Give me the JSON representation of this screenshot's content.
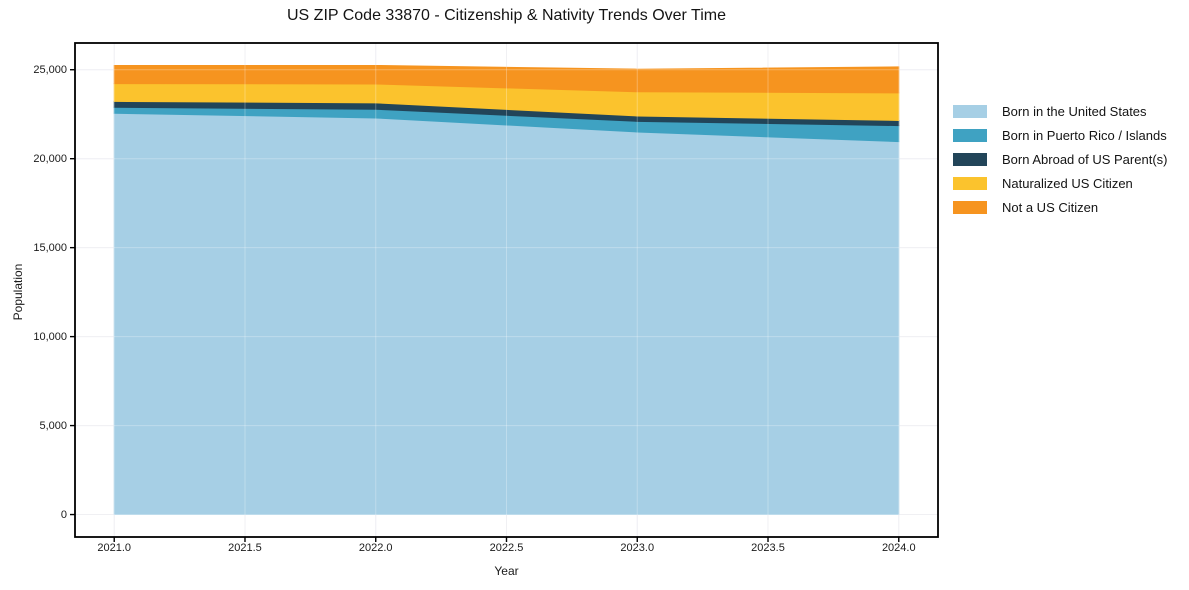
{
  "chart_data": {
    "type": "area",
    "stacked": true,
    "title": "US ZIP Code 33870 - Citizenship & Nativity Trends Over Time",
    "xlabel": "Year",
    "ylabel": "Population",
    "x": [
      2021,
      2022,
      2023,
      2024
    ],
    "series": [
      {
        "name": "Born in the United States",
        "color": "#a6cfe5",
        "values": [
          22550,
          22290,
          21500,
          20960
        ]
      },
      {
        "name": "Born in Puerto Rico / Islands",
        "color": "#3fa2c2",
        "values": [
          340,
          490,
          600,
          900
        ]
      },
      {
        "name": "Born Abroad of US Parent(s)",
        "color": "#224559",
        "values": [
          330,
          360,
          300,
          290
        ]
      },
      {
        "name": "Naturalized US Citizen",
        "color": "#fbc32d",
        "values": [
          1000,
          1060,
          1360,
          1550
        ]
      },
      {
        "name": "Not a US Citizen",
        "color": "#f6941f",
        "values": [
          1020,
          1040,
          1270,
          1460
        ]
      }
    ],
    "stack_totals": [
      25240,
      25240,
      25030,
      25160
    ],
    "xlim": [
      2020.85,
      2024.15
    ],
    "ylim": [
      -1262,
      26502
    ],
    "xticks": [
      2021.0,
      2021.5,
      2022.0,
      2022.5,
      2023.0,
      2023.5,
      2024.0
    ],
    "xtick_labels": [
      "2021.0",
      "2021.5",
      "2022.0",
      "2022.5",
      "2023.0",
      "2023.5",
      "2024.0"
    ],
    "yticks": [
      0,
      5000,
      10000,
      15000,
      20000,
      25000
    ],
    "ytick_labels": [
      "0",
      "5,000",
      "10,000",
      "15,000",
      "20,000",
      "25,000"
    ],
    "grid": true,
    "grid_color": "#eaeaef",
    "axis_color": "#000000",
    "legend_position": "right-outside"
  }
}
